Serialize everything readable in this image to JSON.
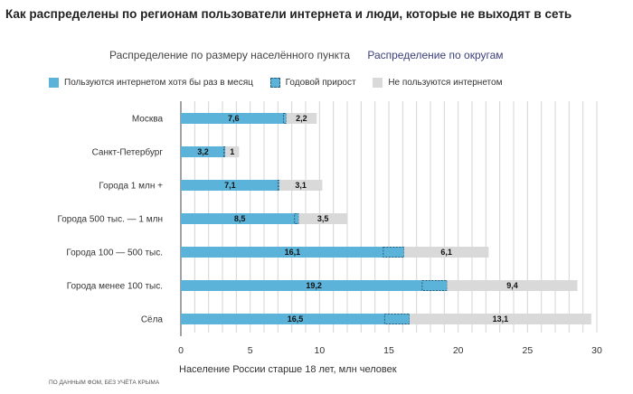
{
  "title": "Как распределены по регионам пользователи интернета и люди, которые не выходят в сеть",
  "tabs": [
    {
      "label": "Распределение по размеру населённого пункта"
    },
    {
      "label": "Распределение по округам"
    }
  ],
  "legend": [
    {
      "label": "Пользуются интернетом хотя бы раз в месяц"
    },
    {
      "label": "Годовой прирост"
    },
    {
      "label": "Не пользуются интернетом"
    }
  ],
  "footnote": "По данным ФОМ, без учёта Крыма",
  "colors": {
    "users": "#5bb3d9",
    "growth_border": "#2a5d7a",
    "non_users": "#d9d9d9",
    "grid": "#d4d4d4"
  },
  "chart_data": {
    "type": "bar",
    "orientation": "horizontal",
    "stacked": true,
    "title": "",
    "xlabel": "Население России старше 18 лет, млн человек",
    "xlim": [
      0,
      30
    ],
    "xticks": [
      0,
      5,
      10,
      15,
      20,
      25,
      30
    ],
    "grid": true,
    "categories": [
      "Москва",
      "Санкт-Петербург",
      "Города 1 млн +",
      "Города 500 тыс. — 1 млн",
      "Города 100 — 500 тыс.",
      "Города менее 100 тыс.",
      "Сёла"
    ],
    "series": [
      {
        "name": "Пользуются интернетом хотя бы раз в месяц",
        "values": [
          7.6,
          3.2,
          7.1,
          8.5,
          16.1,
          19.2,
          16.5
        ],
        "labels": [
          "7,6",
          "3,2",
          "7,1",
          "8,5",
          "16,1",
          "19,2",
          "16,5"
        ]
      },
      {
        "name": "Годовой прирост",
        "values": [
          0.2,
          0.1,
          0.1,
          0.3,
          1.5,
          1.8,
          1.8
        ]
      },
      {
        "name": "Не пользуются интернетом",
        "values": [
          2.2,
          1,
          3.1,
          3.5,
          6.1,
          9.4,
          13.1
        ],
        "labels": [
          "2,2",
          "1",
          "3,1",
          "3,5",
          "6,1",
          "9,4",
          "13,1"
        ]
      }
    ]
  }
}
